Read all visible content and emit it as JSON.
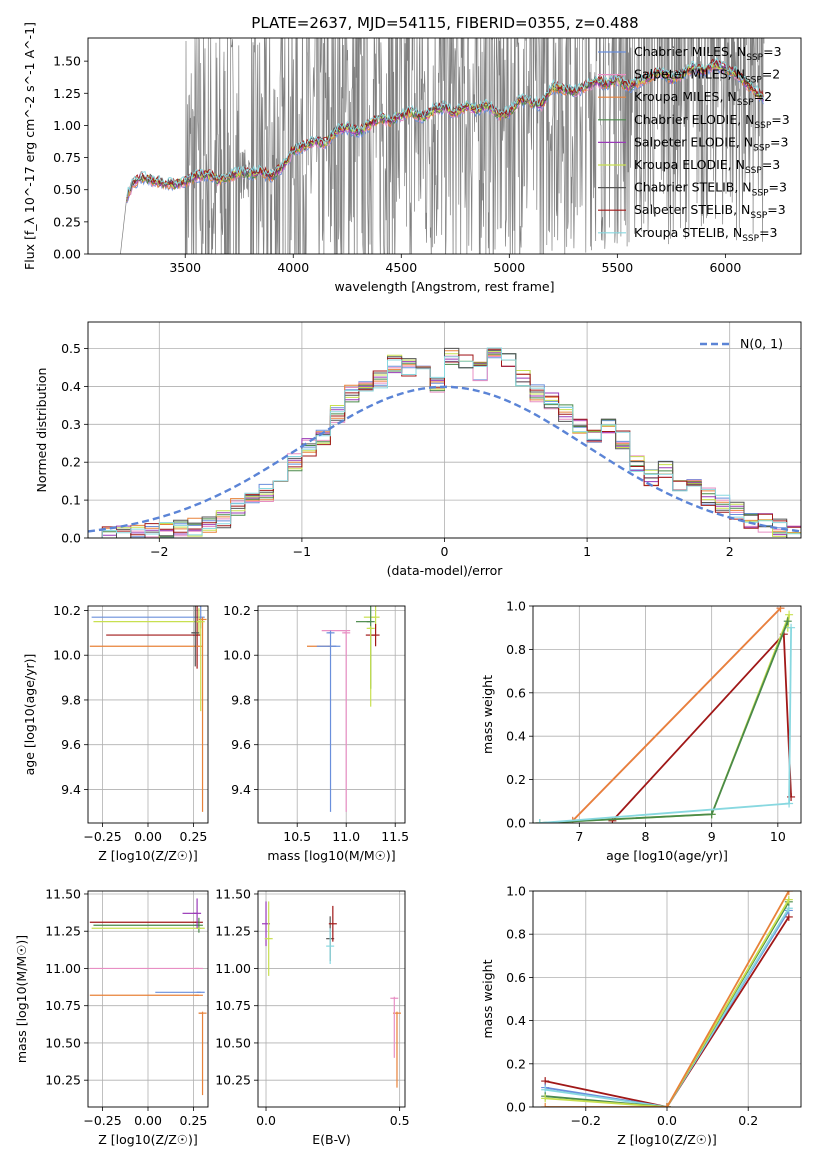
{
  "figure": {
    "title": "PLATE=2637, MJD=54115, FIBERID=0355, z=0.488"
  },
  "legend": [
    {
      "label": "Chabrier MILES, N_SSP=3",
      "color": "#6a8fdc"
    },
    {
      "label": "Salpeter MILES, N_SSP=2",
      "color": "#e88fc4"
    },
    {
      "label": "Kroupa MILES, N_SSP=2",
      "color": "#e8823a"
    },
    {
      "label": "Chabrier ELODIE, N_SSP=3",
      "color": "#4a8a4a"
    },
    {
      "label": "Salpeter ELODIE, N_SSP=3",
      "color": "#9a3ab8"
    },
    {
      "label": "Kroupa ELODIE, N_SSP=3",
      "color": "#c8e050"
    },
    {
      "label": "Chabrier STELIB, N_SSP=3",
      "color": "#555555"
    },
    {
      "label": "Salpeter STELIB, N_SSP=3",
      "color": "#a01818"
    },
    {
      "label": "Kroupa STELIB, N_SSP=3",
      "color": "#88d8e0"
    }
  ],
  "chart_data": [
    {
      "id": "spectrum",
      "type": "line",
      "xlabel": "wavelength [Angstrom, rest frame]",
      "ylabel": "Flux [f_λ 10^-17 erg cm^-2 s^-1 A^-1]",
      "xlim": [
        3050,
        6350
      ],
      "ylim": [
        0,
        1.68
      ],
      "xticks": [
        3500,
        4000,
        4500,
        5000,
        5500,
        6000
      ],
      "yticks": [
        0.0,
        0.25,
        0.5,
        0.75,
        1.0,
        1.25,
        1.5
      ],
      "grid": false,
      "legend_placement": "top-right",
      "data_color": "#808080",
      "model_x": [
        3200,
        3230,
        3260,
        3300,
        3350,
        3400,
        3450,
        3500,
        3550,
        3600,
        3650,
        3700,
        3750,
        3800,
        3850,
        3900,
        3950,
        4000,
        4050,
        4100,
        4150,
        4200,
        4250,
        4300,
        4350,
        4400,
        4450,
        4500,
        4550,
        4600,
        4650,
        4700,
        4750,
        4800,
        4850,
        4900,
        4950,
        5000,
        5050,
        5100,
        5150,
        5200,
        5250,
        5300,
        5350,
        5400,
        5450,
        5500,
        5550,
        5600,
        5650,
        5700,
        5750,
        5800,
        5850,
        5900,
        5950,
        6000,
        6050,
        6100,
        6150,
        6180
      ],
      "model_y": [
        0.0,
        0.45,
        0.55,
        0.6,
        0.57,
        0.55,
        0.54,
        0.56,
        0.6,
        0.62,
        0.58,
        0.6,
        0.63,
        0.62,
        0.64,
        0.6,
        0.68,
        0.8,
        0.84,
        0.88,
        0.86,
        0.96,
        0.98,
        0.95,
        1.0,
        1.06,
        1.03,
        1.08,
        1.1,
        1.06,
        1.12,
        1.14,
        1.1,
        1.15,
        1.12,
        1.16,
        1.08,
        1.1,
        1.2,
        1.18,
        1.16,
        1.3,
        1.28,
        1.26,
        1.3,
        1.34,
        1.32,
        1.36,
        1.3,
        1.34,
        1.38,
        1.42,
        1.36,
        1.4,
        1.45,
        1.42,
        1.48,
        1.44,
        1.4,
        1.32,
        1.25,
        1.2
      ]
    },
    {
      "id": "residuals",
      "type": "histogram",
      "xlabel": "(data-model)/error",
      "ylabel": "Normed distribution",
      "xlim": [
        -2.5,
        2.5
      ],
      "ylim": [
        0,
        0.57
      ],
      "xticks": [
        -2,
        -1,
        0,
        1,
        2
      ],
      "yticks": [
        0.0,
        0.1,
        0.2,
        0.3,
        0.4,
        0.5
      ],
      "grid": true,
      "legend": "N(0, 1)",
      "legend_placement": "top-right",
      "bin_edges": [
        -2.5,
        -2.4,
        -2.3,
        -2.2,
        -2.1,
        -2.0,
        -1.9,
        -1.8,
        -1.7,
        -1.6,
        -1.5,
        -1.4,
        -1.3,
        -1.2,
        -1.1,
        -1.0,
        -0.9,
        -0.8,
        -0.7,
        -0.6,
        -0.5,
        -0.4,
        -0.3,
        -0.2,
        -0.1,
        0.0,
        0.1,
        0.2,
        0.3,
        0.4,
        0.5,
        0.6,
        0.7,
        0.8,
        0.9,
        1.0,
        1.1,
        1.2,
        1.3,
        1.4,
        1.5,
        1.6,
        1.7,
        1.8,
        1.9,
        2.0,
        2.1,
        2.2,
        2.3,
        2.4,
        2.5
      ],
      "counts": [
        0.0,
        0.005,
        0.008,
        0.012,
        0.015,
        0.02,
        0.025,
        0.03,
        0.04,
        0.05,
        0.08,
        0.095,
        0.12,
        0.15,
        0.2,
        0.24,
        0.27,
        0.33,
        0.38,
        0.4,
        0.42,
        0.46,
        0.45,
        0.43,
        0.41,
        0.48,
        0.46,
        0.44,
        0.5,
        0.47,
        0.42,
        0.38,
        0.36,
        0.33,
        0.3,
        0.27,
        0.29,
        0.26,
        0.2,
        0.16,
        0.18,
        0.14,
        0.13,
        0.11,
        0.09,
        0.07,
        0.05,
        0.04,
        0.025,
        0.02
      ],
      "gaussian": {
        "mean": 0,
        "sigma": 1
      }
    },
    {
      "id": "age_vs_Z",
      "type": "scatter",
      "xlabel": "Z [log10(Z/Z☉)]",
      "ylabel": "age  [log10(age/yr)]",
      "xlim": [
        -0.33,
        0.33
      ],
      "ylim": [
        9.25,
        10.22
      ],
      "xticks": [
        -0.25,
        0.0,
        0.25
      ],
      "yticks": [
        9.4,
        9.6,
        9.8,
        10.0,
        10.2
      ],
      "grid": true,
      "points": [
        {
          "x": 0.29,
          "y": 10.17,
          "xerr": 0.6,
          "yerr": 0.05,
          "color": "#6a8fdc"
        },
        {
          "x": 0.28,
          "y": 10.15,
          "xerr": 0.58,
          "yerr": 0.06,
          "color": "#c8e050"
        },
        {
          "x": 0.27,
          "y": 10.09,
          "xerr": 0.5,
          "yerr": 0.15,
          "color": "#a01818"
        },
        {
          "x": 0.28,
          "y": 10.04,
          "xerr": 0.6,
          "yerr": 0.0,
          "color": "#e8823a"
        },
        {
          "x": 0.3,
          "y": 10.16,
          "xerr": 0.02,
          "yerr": 0.86,
          "color": "#e8823a"
        },
        {
          "x": 0.29,
          "y": 10.15,
          "xerr": 0.02,
          "yerr": 0.4,
          "color": "#c8e050"
        },
        {
          "x": 0.26,
          "y": 10.1,
          "xerr": 0.02,
          "yerr": 0.15,
          "color": "#555555"
        }
      ]
    },
    {
      "id": "age_vs_mass",
      "type": "scatter",
      "xlabel": "mass [log10(M/M☉)]",
      "ylabel": "",
      "xlim": [
        10.1,
        11.6
      ],
      "ylim": [
        9.25,
        10.22
      ],
      "xticks": [
        10.5,
        11.0,
        11.5
      ],
      "yticks": [
        9.4,
        9.6,
        9.8,
        10.0,
        10.2
      ],
      "grid": true,
      "points": [
        {
          "x": 11.3,
          "y": 10.17,
          "xerr": 0.12,
          "yerr": 0.05,
          "color": "#c8e050"
        },
        {
          "x": 11.25,
          "y": 10.15,
          "xerr": 0.15,
          "yerr": 0.3,
          "color": "#4a8a4a"
        },
        {
          "x": 11.3,
          "y": 10.09,
          "xerr": 0.1,
          "yerr": 0.05,
          "color": "#a01818"
        },
        {
          "x": 11.0,
          "y": 10.11,
          "xerr": 0.25,
          "yerr": 0.0,
          "color": "#e88fc4"
        },
        {
          "x": 10.85,
          "y": 10.04,
          "xerr": 0.25,
          "yerr": 0.0,
          "color": "#e8823a"
        },
        {
          "x": 10.9,
          "y": 10.04,
          "xerr": 0.2,
          "yerr": 0.0,
          "color": "#6a8fdc"
        },
        {
          "x": 10.84,
          "y": 10.1,
          "xerr": 0.02,
          "yerr": 0.8,
          "color": "#6a8fdc"
        },
        {
          "x": 11.0,
          "y": 10.1,
          "xerr": 0.02,
          "yerr": 0.8,
          "color": "#e88fc4"
        },
        {
          "x": 11.25,
          "y": 10.12,
          "xerr": 0.02,
          "yerr": 0.35,
          "color": "#c8e050"
        }
      ]
    },
    {
      "id": "mass_weight_vs_age",
      "type": "line",
      "xlabel": "age  [log10(age/yr)]",
      "ylabel": "mass weight",
      "xlim": [
        6.3,
        10.35
      ],
      "ylim": [
        0,
        1.0
      ],
      "xticks": [
        7,
        8,
        9,
        10
      ],
      "yticks": [
        0.0,
        0.2,
        0.4,
        0.6,
        0.8,
        1.0
      ],
      "grid": true,
      "series": [
        {
          "color": "#e88fc4",
          "x": [
            6.9,
            10.04
          ],
          "y": [
            0.01,
            0.99
          ]
        },
        {
          "color": "#e8823a",
          "x": [
            6.9,
            10.04
          ],
          "y": [
            0.01,
            0.99
          ]
        },
        {
          "color": "#a01818",
          "x": [
            7.5,
            10.09,
            10.2
          ],
          "y": [
            0.01,
            0.87,
            0.12
          ]
        },
        {
          "color": "#c8e050",
          "x": [
            6.4,
            9.0,
            10.17,
            10.15
          ],
          "y": [
            0.0,
            0.04,
            0.96,
            0.9
          ]
        },
        {
          "color": "#4a8a4a",
          "x": [
            6.4,
            9.0,
            10.15
          ],
          "y": [
            0.0,
            0.04,
            0.93
          ]
        },
        {
          "color": "#88d8e0",
          "x": [
            6.4,
            10.17,
            10.2
          ],
          "y": [
            0.0,
            0.09,
            0.9
          ]
        }
      ]
    },
    {
      "id": "mass_vs_Z",
      "type": "scatter",
      "xlabel": "Z [log10(Z/Z☉)]",
      "ylabel": "mass [log10(M/M☉)]",
      "xlim": [
        -0.33,
        0.33
      ],
      "ylim": [
        10.07,
        11.52
      ],
      "xticks": [
        -0.25,
        0.0,
        0.25
      ],
      "yticks": [
        10.25,
        10.5,
        10.75,
        11.0,
        11.25,
        11.5
      ],
      "grid": true,
      "points": [
        {
          "x": 0.28,
          "y": 11.31,
          "xerr": 0.6,
          "yerr": 0.0,
          "color": "#a01818"
        },
        {
          "x": 0.28,
          "y": 11.29,
          "xerr": 0.58,
          "yerr": 0.05,
          "color": "#4a8a4a"
        },
        {
          "x": 0.29,
          "y": 11.27,
          "xerr": 0.6,
          "yerr": 0.0,
          "color": "#c8e050"
        },
        {
          "x": 0.27,
          "y": 11.37,
          "xerr": 0.08,
          "yerr": 0.1,
          "color": "#9a3ab8"
        },
        {
          "x": 0.28,
          "y": 11.0,
          "xerr": 0.6,
          "yerr": 0.0,
          "color": "#e88fc4"
        },
        {
          "x": 0.28,
          "y": 10.82,
          "xerr": 0.6,
          "yerr": 0.0,
          "color": "#e8823a"
        },
        {
          "x": 0.29,
          "y": 10.84,
          "xerr": 0.25,
          "yerr": 0.0,
          "color": "#6a8fdc"
        },
        {
          "x": 0.3,
          "y": 10.7,
          "xerr": 0.02,
          "yerr": 0.55,
          "color": "#e8823a"
        }
      ]
    },
    {
      "id": "mass_vs_EBV",
      "type": "scatter",
      "xlabel": "E(B-V)",
      "ylabel": "",
      "xlim": [
        -0.03,
        0.52
      ],
      "ylim": [
        10.07,
        11.52
      ],
      "xticks": [
        0.0,
        0.5
      ],
      "yticks": [
        10.25,
        10.5,
        10.75,
        11.0,
        11.25,
        11.5
      ],
      "grid": true,
      "points": [
        {
          "x": 0.0,
          "y": 11.3,
          "xerr": 0.0,
          "yerr": 0.15,
          "color": "#9a3ab8"
        },
        {
          "x": 0.01,
          "y": 11.2,
          "xerr": 0.0,
          "yerr": 0.25,
          "color": "#c8e050"
        },
        {
          "x": 0.24,
          "y": 11.2,
          "xerr": 0.0,
          "yerr": 0.15,
          "color": "#555555"
        },
        {
          "x": 0.25,
          "y": 11.3,
          "xerr": 0.0,
          "yerr": 0.12,
          "color": "#a01818"
        },
        {
          "x": 0.24,
          "y": 11.15,
          "xerr": 0.0,
          "yerr": 0.12,
          "color": "#88d8e0"
        },
        {
          "x": 0.49,
          "y": 10.7,
          "xerr": 0.0,
          "yerr": 0.5,
          "color": "#e8823a"
        },
        {
          "x": 0.48,
          "y": 10.8,
          "xerr": 0.0,
          "yerr": 0.4,
          "color": "#e88fc4"
        }
      ]
    },
    {
      "id": "mass_weight_vs_Z",
      "type": "line",
      "xlabel": "Z [log10(Z/Z☉)]",
      "ylabel": "mass weight",
      "xlim": [
        -0.33,
        0.33
      ],
      "ylim": [
        0,
        1.0
      ],
      "xticks": [
        -0.2,
        0.0,
        0.2
      ],
      "yticks": [
        0.0,
        0.2,
        0.4,
        0.6,
        0.8,
        1.0
      ],
      "grid": true,
      "series": [
        {
          "color": "#a01818",
          "x": [
            -0.3,
            0.0,
            0.3
          ],
          "y": [
            0.12,
            0.0,
            0.88
          ]
        },
        {
          "color": "#6a8fdc",
          "x": [
            -0.3,
            0.0,
            0.3
          ],
          "y": [
            0.09,
            0.0,
            0.91
          ]
        },
        {
          "color": "#88d8e0",
          "x": [
            -0.3,
            0.0,
            0.3
          ],
          "y": [
            0.08,
            0.0,
            0.92
          ]
        },
        {
          "color": "#4a8a4a",
          "x": [
            -0.3,
            0.0,
            0.3
          ],
          "y": [
            0.05,
            0.0,
            0.95
          ]
        },
        {
          "color": "#c8e050",
          "x": [
            -0.3,
            0.0,
            0.3
          ],
          "y": [
            0.04,
            0.0,
            0.96
          ]
        },
        {
          "color": "#e8823a",
          "x": [
            -0.3,
            0.0,
            0.3
          ],
          "y": [
            0.0,
            0.0,
            1.0
          ]
        }
      ]
    }
  ]
}
